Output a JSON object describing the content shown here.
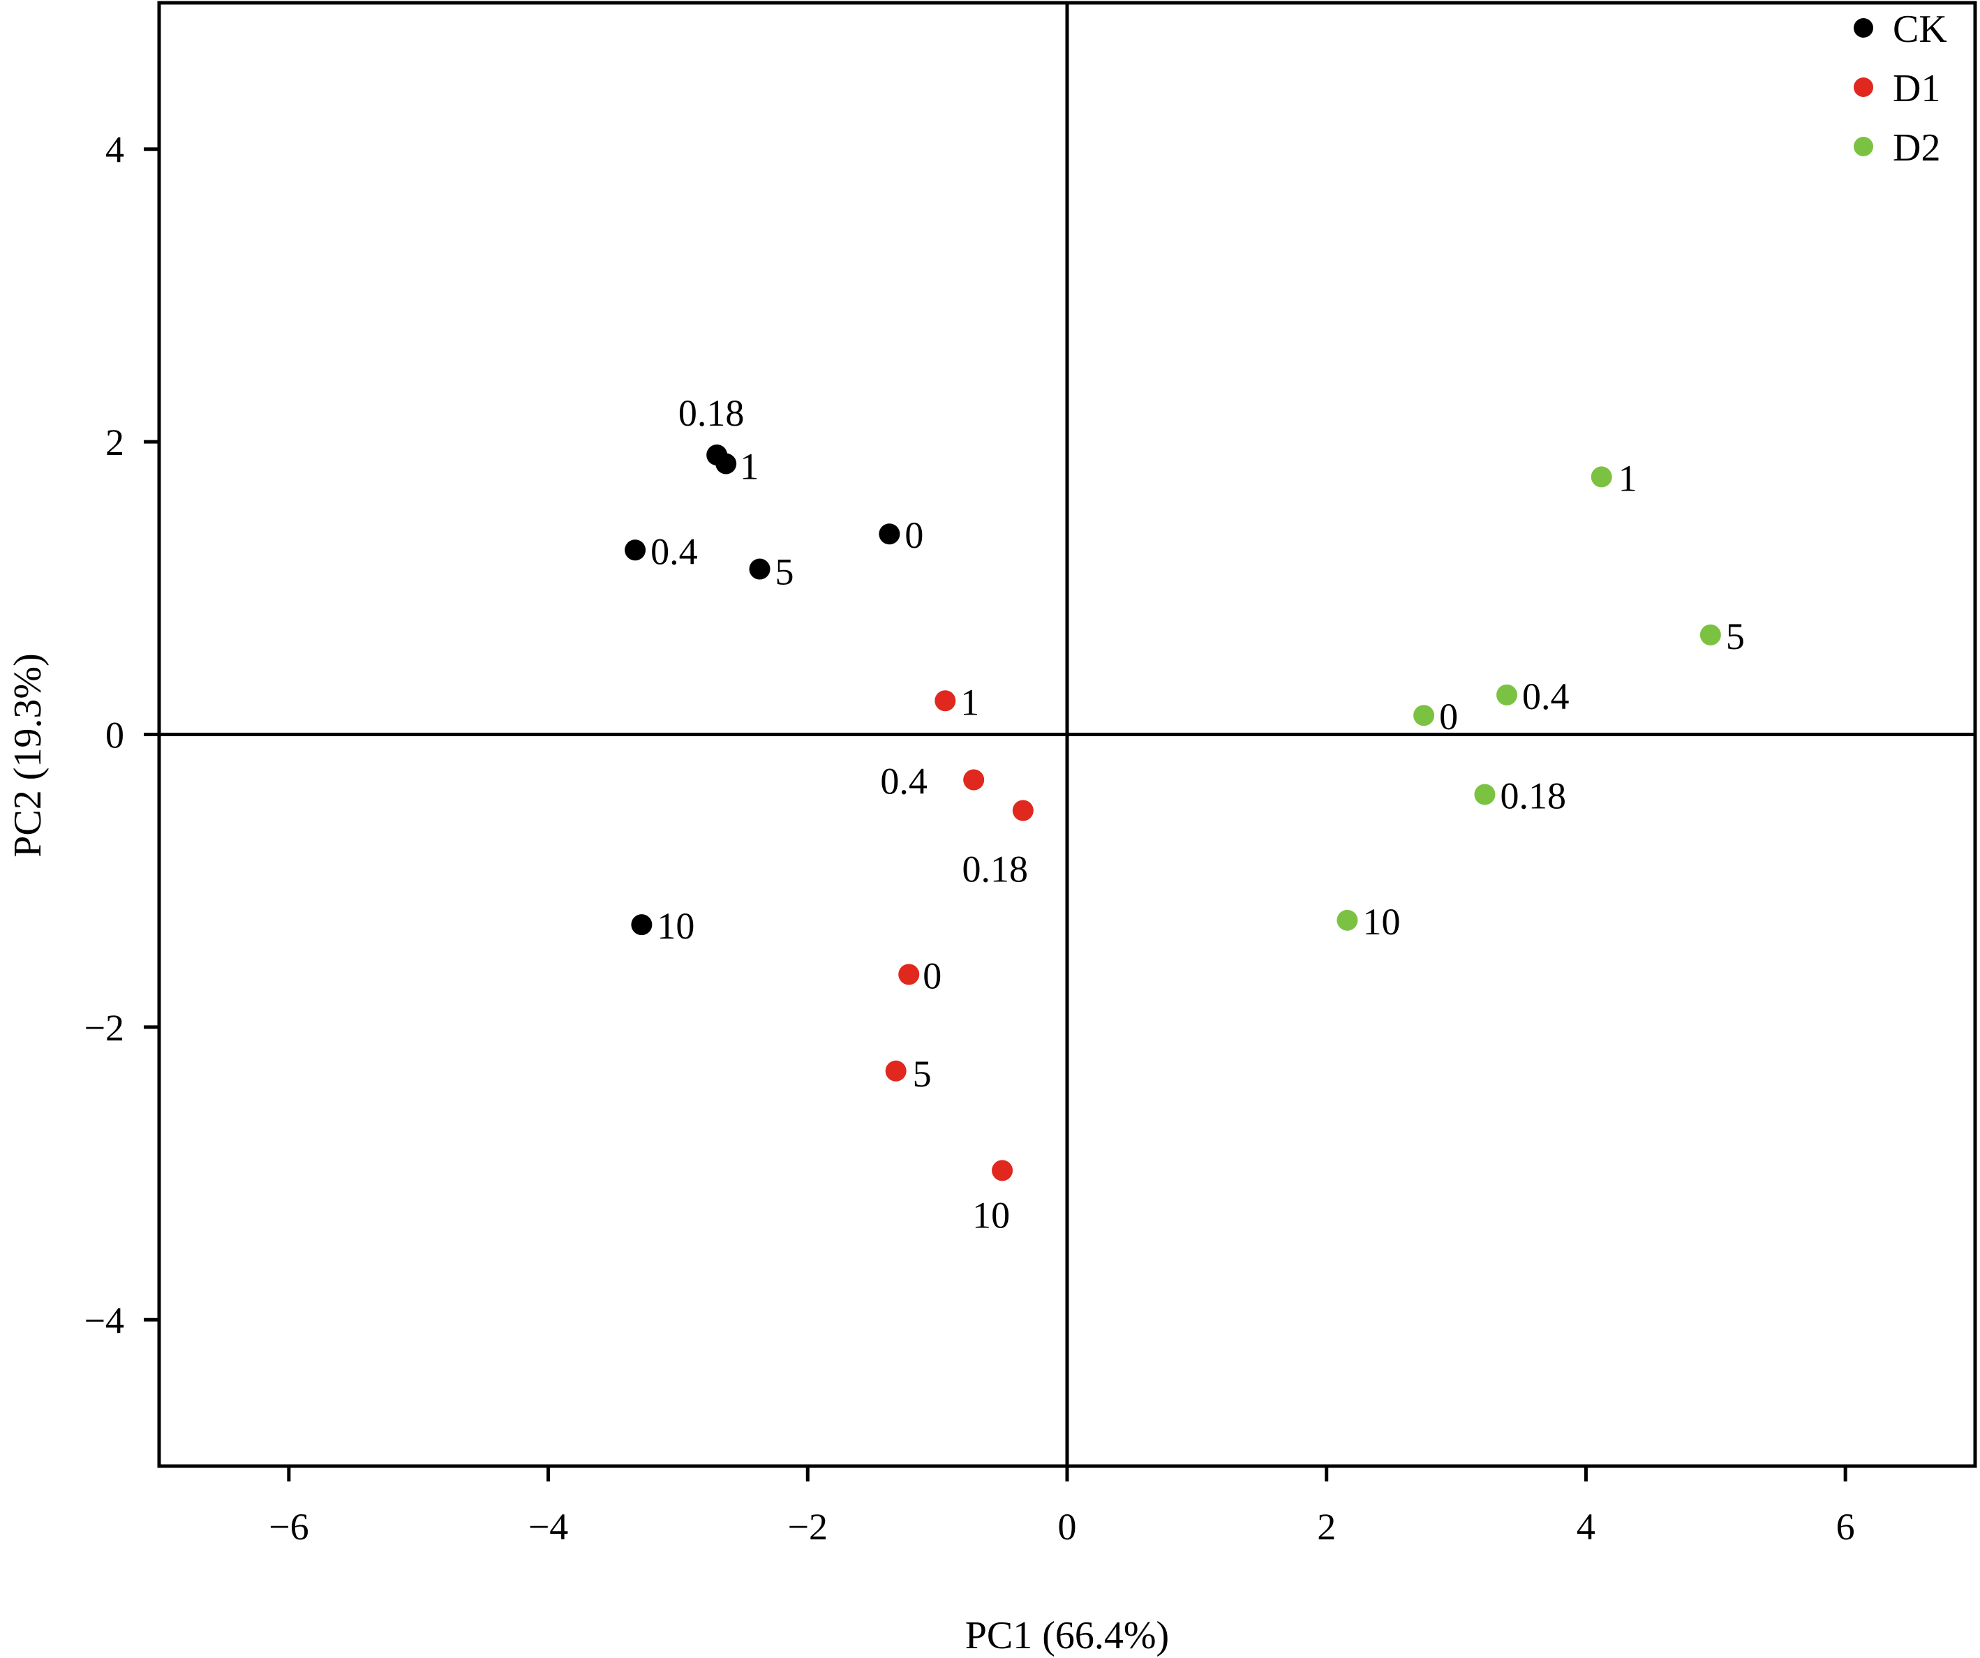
{
  "chart_data": {
    "type": "scatter",
    "xlabel": "PC1 (66.4%)",
    "ylabel": "PC2 (19.3%)",
    "xlim": [
      -7,
      7
    ],
    "ylim": [
      -5,
      5
    ],
    "xticks": [
      -6,
      -4,
      -2,
      0,
      2,
      4,
      6
    ],
    "yticks": [
      -4,
      -2,
      0,
      2,
      4
    ],
    "xtick_labels": [
      "−6",
      "−4",
      "−2",
      "0",
      "2",
      "4",
      "6"
    ],
    "ytick_labels": [
      "−4",
      "−2",
      "0",
      "2",
      "4"
    ],
    "grid": false,
    "zero_lines": true,
    "legend_position": "top-right",
    "series": [
      {
        "name": "CK",
        "color": "#000000",
        "points": [
          {
            "x": -1.37,
            "y": 1.37,
            "label": "0"
          },
          {
            "x": -2.7,
            "y": 1.91,
            "label": "0.18"
          },
          {
            "x": -3.33,
            "y": 1.26,
            "label": "0.4"
          },
          {
            "x": -2.63,
            "y": 1.85,
            "label": "1"
          },
          {
            "x": -2.37,
            "y": 1.13,
            "label": "5"
          },
          {
            "x": -3.28,
            "y": -1.3,
            "label": "10"
          }
        ]
      },
      {
        "name": "D1",
        "color": "#e0281e",
        "points": [
          {
            "x": -1.22,
            "y": -1.64,
            "label": "0"
          },
          {
            "x": -0.34,
            "y": -0.52,
            "label": "0.18"
          },
          {
            "x": -0.72,
            "y": -0.31,
            "label": "0.4"
          },
          {
            "x": -0.94,
            "y": 0.23,
            "label": "1"
          },
          {
            "x": -1.32,
            "y": -2.3,
            "label": "5"
          },
          {
            "x": -0.5,
            "y": -2.98,
            "label": "10"
          }
        ]
      },
      {
        "name": "D2",
        "color": "#7cc242",
        "points": [
          {
            "x": 2.75,
            "y": 0.13,
            "label": "0"
          },
          {
            "x": 3.22,
            "y": -0.41,
            "label": "0.18"
          },
          {
            "x": 3.39,
            "y": 0.27,
            "label": "0.4"
          },
          {
            "x": 4.12,
            "y": 1.76,
            "label": "1"
          },
          {
            "x": 4.96,
            "y": 0.68,
            "label": "5"
          },
          {
            "x": 2.16,
            "y": -1.27,
            "label": "10"
          }
        ]
      }
    ]
  }
}
